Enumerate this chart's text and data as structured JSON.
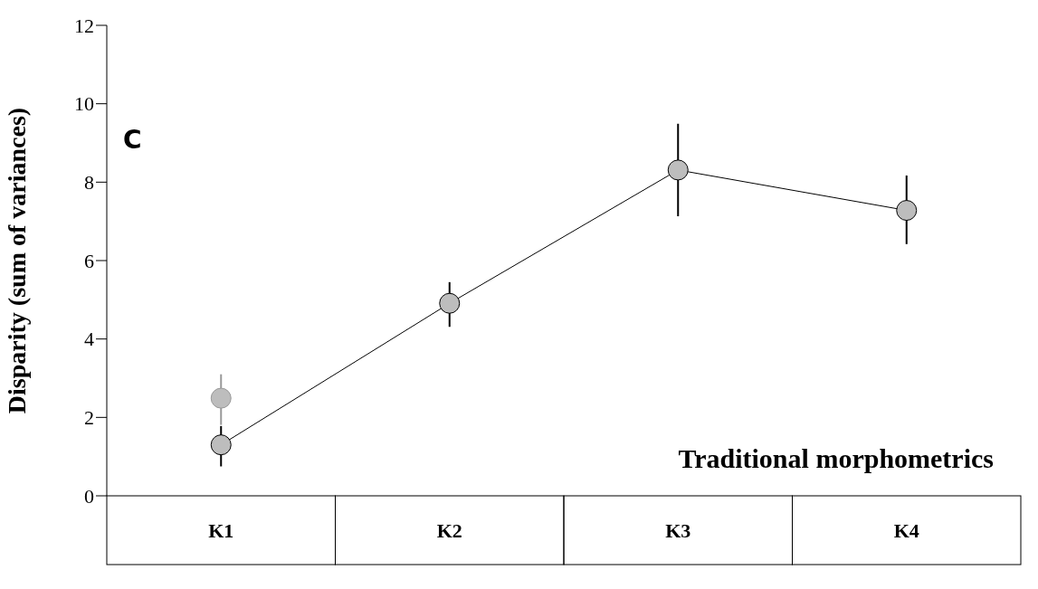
{
  "chart_data": {
    "type": "line",
    "ylabel": "Disparity (sum of variances)",
    "categories": [
      "K1",
      "K2",
      "K3",
      "K4"
    ],
    "series": [
      {
        "type": "scatter",
        "color": "#999999",
        "values": [
          2.49,
          null,
          null,
          null
        ],
        "errors": [
          [
            1.81,
            3.1
          ],
          null,
          null,
          null
        ]
      },
      {
        "color": "#000000",
        "values": [
          1.3,
          4.91,
          8.31,
          7.28
        ],
        "errors": [
          [
            0.75,
            1.78
          ],
          [
            4.31,
            5.45
          ],
          [
            7.13,
            9.49
          ],
          [
            6.42,
            8.17
          ]
        ]
      }
    ],
    "ylim": [
      0,
      12
    ],
    "yticks": [
      0,
      2,
      4,
      6,
      8,
      10,
      12
    ],
    "grid": false,
    "legend": false,
    "marker": "circle",
    "annotations": [
      "C",
      "Traditional morphometrics"
    ]
  }
}
